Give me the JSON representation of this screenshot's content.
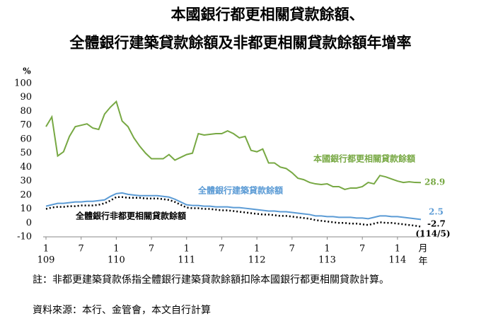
{
  "chart_data": {
    "type": "line",
    "title_lines": [
      "本國銀行都更相關貸款餘額、",
      "全體銀行建築貸款餘額及非都更相關貸款餘額年增率"
    ],
    "y_unit": "%",
    "x_unit_month": "月",
    "x_unit_year": "年",
    "categories": [
      "1",
      null,
      null,
      null,
      null,
      null,
      "7",
      null,
      null,
      null,
      null,
      null,
      "1",
      null,
      null,
      null,
      null,
      null,
      "7",
      null,
      null,
      null,
      null,
      null,
      "1",
      null,
      null,
      null,
      null,
      null,
      "7",
      null,
      null,
      null,
      null,
      null,
      "1",
      null,
      null,
      null,
      null,
      null,
      "7",
      null,
      null,
      null,
      null,
      null,
      "1",
      null,
      null,
      null,
      null,
      null,
      "7",
      null,
      null,
      null,
      null,
      null,
      "1",
      null,
      null,
      null,
      null
    ],
    "years": [
      "109",
      null,
      null,
      null,
      null,
      null,
      null,
      null,
      null,
      null,
      null,
      null,
      "110",
      null,
      null,
      null,
      null,
      null,
      null,
      null,
      null,
      null,
      null,
      null,
      "111",
      null,
      null,
      null,
      null,
      null,
      null,
      null,
      null,
      null,
      null,
      null,
      "112",
      null,
      null,
      null,
      null,
      null,
      null,
      null,
      null,
      null,
      null,
      null,
      "113",
      null,
      null,
      null,
      null,
      null,
      null,
      null,
      null,
      null,
      null,
      null,
      "114",
      null,
      null,
      null,
      null
    ],
    "series": [
      {
        "name": "本國銀行都更相關貸款餘額",
        "color": "#77a843",
        "dash": false,
        "values": [
          69,
          76,
          48,
          51,
          62,
          69,
          70,
          71,
          68,
          67,
          78,
          83,
          87,
          73,
          69,
          61,
          55,
          50,
          46,
          46,
          46,
          49,
          45,
          47,
          49,
          50,
          64,
          63,
          63.5,
          64,
          64,
          66,
          64,
          61,
          62,
          52,
          51,
          53,
          43,
          43,
          40,
          39,
          36,
          32,
          31,
          29,
          28,
          27.5,
          28,
          26,
          26,
          24,
          25,
          25,
          26,
          29,
          28,
          34,
          33,
          31.5,
          30,
          29,
          29.5,
          29,
          28.9
        ]
      },
      {
        "name": "全體銀行建築貸款餘額",
        "color": "#5b9bd5",
        "dash": false,
        "values": [
          12,
          13,
          14,
          14,
          14.5,
          15,
          15,
          15.5,
          15.5,
          16,
          16.5,
          19,
          21,
          21.5,
          20.5,
          20,
          19.5,
          19.5,
          19.5,
          19.5,
          19,
          18.5,
          17,
          15,
          13,
          12.5,
          12.5,
          12,
          12,
          11.5,
          11.5,
          11.5,
          11,
          11,
          10.5,
          10,
          9.5,
          9,
          8.5,
          8.5,
          8,
          8,
          7.5,
          7,
          6.5,
          6,
          5,
          5,
          4.5,
          4.5,
          4,
          4,
          4,
          3.5,
          3.5,
          3,
          4,
          5,
          5,
          4.5,
          4.5,
          4,
          3.5,
          3,
          2.5
        ]
      },
      {
        "name": "全體銀行非都更相關貸款餘額",
        "color": "#000000",
        "dash": true,
        "values": [
          10,
          11,
          11.5,
          11.5,
          12,
          12,
          12.5,
          12.5,
          12.5,
          13,
          14,
          16,
          18.5,
          18.5,
          18,
          18,
          18,
          17.5,
          17.5,
          17.5,
          17,
          16.5,
          15,
          13,
          11,
          10.5,
          10.5,
          10,
          10,
          9.5,
          9,
          9,
          8.5,
          8,
          7.5,
          7,
          6.5,
          6,
          6,
          5.5,
          5,
          5,
          4.5,
          4,
          3.5,
          3,
          2,
          1.5,
          1,
          0.5,
          0,
          0,
          -0.5,
          -0.5,
          -1,
          -1.5,
          -0.5,
          0.5,
          0,
          0,
          -0.5,
          -1,
          -1.5,
          -2,
          -2.7
        ]
      }
    ],
    "end_annotation": "(114/5)",
    "ylim": [
      -10,
      100
    ],
    "yticks": [
      -10,
      0,
      10,
      20,
      30,
      40,
      50,
      60,
      70,
      80,
      90,
      100
    ],
    "grid": false
  },
  "notes": {
    "note": "註：非都更建築貸款係指全體銀行建築貸款餘額扣除本國銀行都更相關貸款計算。",
    "source": "資料來源：本行、金管會，本文自行計算"
  }
}
